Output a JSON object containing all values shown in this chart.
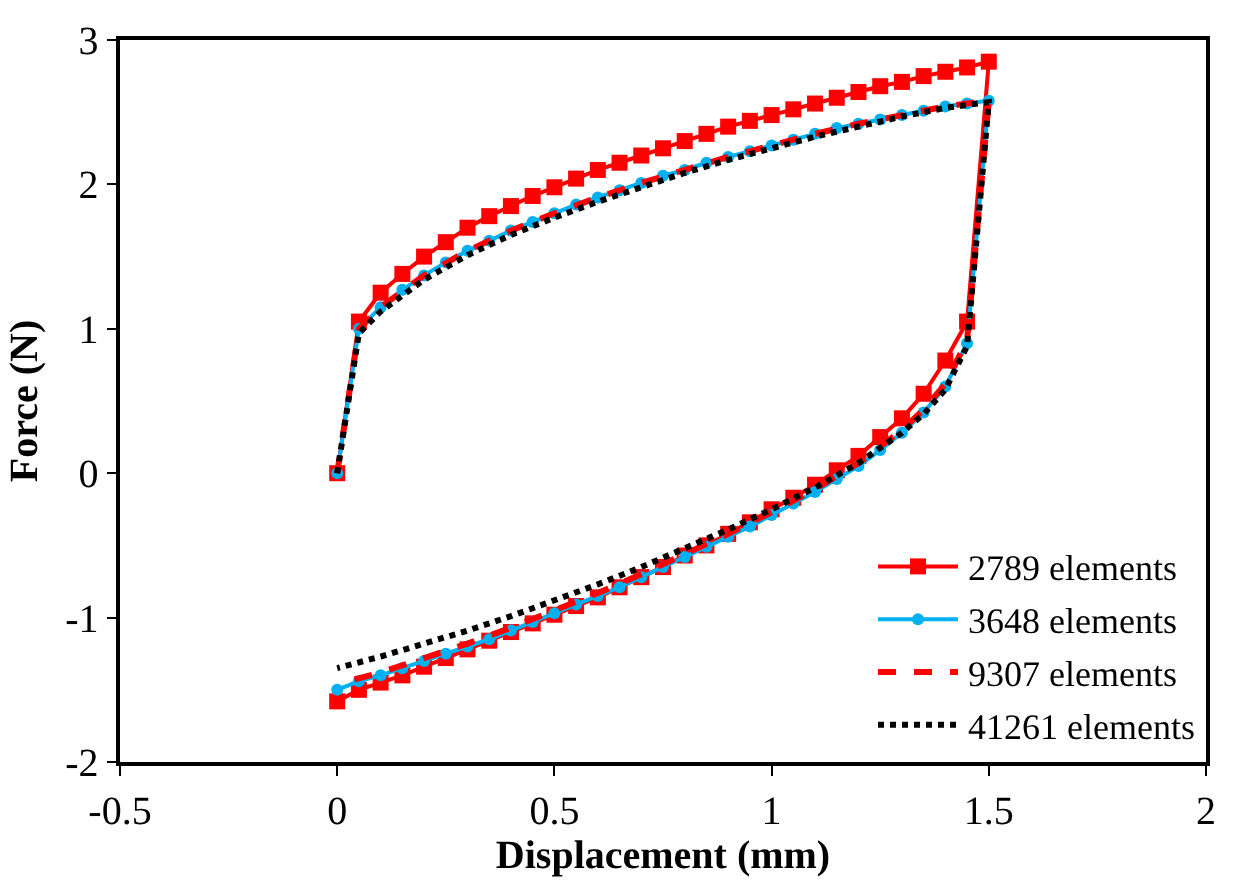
{
  "chart_data": {
    "type": "line",
    "xlabel": "Displacement (mm)",
    "ylabel": "Force (N)",
    "xlim": [
      -0.5,
      2
    ],
    "xticks": [
      -0.5,
      0,
      0.5,
      1,
      1.5,
      2
    ],
    "ylim": [
      -2,
      3
    ],
    "yticks": [
      -2,
      -1,
      0,
      1,
      2,
      3
    ],
    "legend": "bottom right",
    "series": [
      {
        "name": "2789 elements",
        "color": "#ff0000",
        "marker": "square",
        "line_style": "solid",
        "x": [
          0,
          0.05,
          0.1,
          0.15,
          0.2,
          0.25,
          0.3,
          0.35,
          0.4,
          0.45,
          0.5,
          0.55,
          0.6,
          0.65,
          0.7,
          0.75,
          0.8,
          0.85,
          0.9,
          0.95,
          1.0,
          1.05,
          1.1,
          1.15,
          1.2,
          1.25,
          1.3,
          1.35,
          1.4,
          1.45,
          1.5,
          1.45,
          1.4,
          1.35,
          1.3,
          1.25,
          1.2,
          1.15,
          1.1,
          1.05,
          1.0,
          0.95,
          0.9,
          0.85,
          0.8,
          0.75,
          0.7,
          0.65,
          0.6,
          0.55,
          0.5,
          0.45,
          0.4,
          0.35,
          0.3,
          0.25,
          0.2,
          0.15,
          0.1,
          0.05,
          0
        ],
        "values": [
          0,
          1.05,
          1.25,
          1.38,
          1.5,
          1.6,
          1.7,
          1.78,
          1.85,
          1.92,
          1.98,
          2.04,
          2.1,
          2.15,
          2.2,
          2.25,
          2.3,
          2.35,
          2.4,
          2.44,
          2.48,
          2.52,
          2.56,
          2.6,
          2.64,
          2.68,
          2.71,
          2.75,
          2.78,
          2.81,
          2.85,
          1.05,
          0.78,
          0.55,
          0.38,
          0.25,
          0.12,
          0.02,
          -0.08,
          -0.17,
          -0.25,
          -0.34,
          -0.42,
          -0.5,
          -0.57,
          -0.65,
          -0.72,
          -0.79,
          -0.86,
          -0.92,
          -0.98,
          -1.04,
          -1.1,
          -1.16,
          -1.22,
          -1.28,
          -1.34,
          -1.4,
          -1.45,
          -1.5,
          -1.58
        ]
      },
      {
        "name": "3648 elements",
        "color": "#00b0f0",
        "marker": "circle",
        "line_style": "solid",
        "x": [
          0,
          0.05,
          0.1,
          0.15,
          0.2,
          0.25,
          0.3,
          0.35,
          0.4,
          0.45,
          0.5,
          0.55,
          0.6,
          0.65,
          0.7,
          0.75,
          0.8,
          0.85,
          0.9,
          0.95,
          1.0,
          1.05,
          1.1,
          1.15,
          1.2,
          1.25,
          1.3,
          1.35,
          1.4,
          1.45,
          1.5,
          1.45,
          1.4,
          1.35,
          1.3,
          1.25,
          1.2,
          1.15,
          1.1,
          1.05,
          1.0,
          0.95,
          0.9,
          0.85,
          0.8,
          0.75,
          0.7,
          0.65,
          0.6,
          0.55,
          0.5,
          0.45,
          0.4,
          0.35,
          0.3,
          0.25,
          0.2,
          0.15,
          0.1,
          0.05,
          0
        ],
        "values": [
          0,
          1.0,
          1.15,
          1.27,
          1.37,
          1.46,
          1.54,
          1.61,
          1.68,
          1.74,
          1.8,
          1.86,
          1.91,
          1.96,
          2.01,
          2.06,
          2.1,
          2.15,
          2.19,
          2.23,
          2.27,
          2.31,
          2.35,
          2.39,
          2.42,
          2.45,
          2.48,
          2.51,
          2.54,
          2.56,
          2.58,
          0.9,
          0.6,
          0.42,
          0.28,
          0.16,
          0.05,
          -0.04,
          -0.13,
          -0.21,
          -0.29,
          -0.37,
          -0.44,
          -0.51,
          -0.58,
          -0.65,
          -0.72,
          -0.79,
          -0.85,
          -0.91,
          -0.97,
          -1.03,
          -1.09,
          -1.15,
          -1.2,
          -1.25,
          -1.3,
          -1.35,
          -1.4,
          -1.44,
          -1.5
        ]
      },
      {
        "name": "9307 elements",
        "color": "#ff0000",
        "marker": "none",
        "line_style": "dashed",
        "x": [
          0,
          0.05,
          0.1,
          0.2,
          0.3,
          0.4,
          0.5,
          0.6,
          0.7,
          0.8,
          0.9,
          1.0,
          1.1,
          1.2,
          1.3,
          1.4,
          1.5,
          1.45,
          1.4,
          1.35,
          1.3,
          1.2,
          1.1,
          1.0,
          0.9,
          0.8,
          0.7,
          0.6,
          0.5,
          0.4,
          0.3,
          0.2,
          0.1,
          0
        ],
        "values": [
          0,
          1.0,
          1.15,
          1.37,
          1.54,
          1.68,
          1.8,
          1.91,
          2.01,
          2.1,
          2.19,
          2.27,
          2.35,
          2.42,
          2.48,
          2.54,
          2.58,
          0.92,
          0.62,
          0.44,
          0.3,
          0.07,
          -0.11,
          -0.27,
          -0.42,
          -0.56,
          -0.7,
          -0.83,
          -0.95,
          -1.07,
          -1.18,
          -1.28,
          -1.38,
          -1.46
        ]
      },
      {
        "name": "41261 elements",
        "color": "#000000",
        "marker": "none",
        "line_style": "dotted",
        "x": [
          0,
          0.05,
          0.1,
          0.2,
          0.3,
          0.4,
          0.5,
          0.6,
          0.7,
          0.8,
          0.9,
          1.0,
          1.1,
          1.2,
          1.3,
          1.4,
          1.5,
          1.45,
          1.4,
          1.35,
          1.3,
          1.2,
          1.1,
          1.0,
          0.9,
          0.8,
          0.7,
          0.6,
          0.5,
          0.4,
          0.3,
          0.2,
          0.1,
          0
        ],
        "values": [
          0,
          0.97,
          1.12,
          1.34,
          1.51,
          1.65,
          1.77,
          1.88,
          1.98,
          2.08,
          2.17,
          2.25,
          2.33,
          2.4,
          2.47,
          2.53,
          2.57,
          0.88,
          0.58,
          0.41,
          0.28,
          0.07,
          -0.1,
          -0.25,
          -0.39,
          -0.52,
          -0.65,
          -0.77,
          -0.88,
          -0.99,
          -1.09,
          -1.18,
          -1.27,
          -1.35
        ]
      }
    ]
  }
}
